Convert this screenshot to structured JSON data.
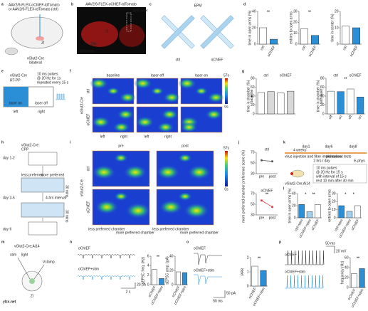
{
  "panels": {
    "a": {
      "letter": "a",
      "virus1": "AAV2/9-FLEX-oChIEF-tdTomato",
      "virus2": "or AAV2/9-FLEX-tdTomato (ctrl)",
      "region": "ZI",
      "mouse": "vGlut2-Cre",
      "note": "bilateral"
    },
    "b": {
      "letter": "b",
      "title": "AAV2/9-FLEX-oChIEF-tdTomato",
      "fiber": "optic fiber",
      "zi": "ZI",
      "dn": "DN",
      "marker": "tdTomato"
    },
    "c": {
      "letter": "c",
      "title": "EPM",
      "ctrl": "ctrl",
      "ochief": "oChIEF"
    },
    "d": {
      "letter": "d",
      "plots": [
        {
          "ylabel": "time in open arms (%)",
          "ylim": [
            0,
            40
          ],
          "yticks": [
            0,
            20,
            40
          ],
          "categories": [
            "ctrl",
            "oChIEF"
          ],
          "colors": [
            "#ffffff",
            "#2b8fd8"
          ],
          "values": [
            20,
            6
          ],
          "sig": [
            "**"
          ]
        },
        {
          "ylabel": "entries to open arms",
          "ylim": [
            0,
            30
          ],
          "yticks": [
            0,
            10,
            20,
            30
          ],
          "categories": [
            "ctrl",
            "oChIEF"
          ],
          "colors": [
            "#ffffff",
            "#2b8fd8"
          ],
          "values": [
            14,
            8
          ],
          "sig": [
            "**"
          ]
        },
        {
          "ylabel": "time in center (%)",
          "ylim": [
            0,
            20
          ],
          "yticks": [
            0,
            10,
            20
          ],
          "categories": [
            "ctrl",
            "oChIEF"
          ],
          "colors": [
            "#ffffff",
            "#2b8fd8"
          ],
          "values": [
            11,
            10
          ]
        }
      ]
    },
    "e": {
      "letter": "e",
      "mouse": "vGlut2-Cre",
      "task": "RT-PP",
      "on": "laser on",
      "off": "laser off",
      "left": "left",
      "right": "right",
      "pulse1": "10 ms pulses",
      "pulse2": "@ 20 Hz for 1s",
      "pulse3": "repeated every 15 s"
    },
    "f": {
      "letter": "f",
      "cols": [
        "baseline",
        "laser-off",
        "laser-on"
      ],
      "rows": [
        "ctrl",
        "oChIEF"
      ],
      "mouse": "vGlut2-Cre",
      "sides": [
        "left",
        "right",
        "left",
        "right"
      ],
      "cmax": "57s",
      "cmin": "0s"
    },
    "g": {
      "letter": "g",
      "plots": [
        {
          "ylabel": "time in chamber (%)",
          "sub": "baseline",
          "groups": [
            "ctrl",
            "oChIEF"
          ],
          "ylim": [
            0,
            80
          ],
          "yticks": [
            0,
            20,
            40,
            60,
            80
          ],
          "colors": [
            "#ffffff",
            "#d9d9d9",
            "#ffffff",
            "#d9d9d9"
          ],
          "values": [
            48,
            50,
            47,
            51
          ]
        },
        {
          "ylabel": "time in chamber (%)",
          "sub": "with laser",
          "groups": [
            "ctrl",
            "oChIEF"
          ],
          "ylim": [
            0,
            80
          ],
          "yticks": [
            0,
            20,
            40,
            60,
            80
          ],
          "categories": [
            "off",
            "on",
            "off",
            "on"
          ],
          "colors": [
            "#ffffff",
            "#2b8fd8",
            "#ffffff",
            "#2b8fd8"
          ],
          "values": [
            51,
            50,
            56,
            38
          ],
          "sig": [
            "**"
          ]
        }
      ]
    },
    "h": {
      "letter": "h",
      "mouse": "vGlut2-Cre",
      "task": "CPP",
      "days": [
        "day 1-2",
        "day 3-5",
        "day 6"
      ],
      "less": "less preferred",
      "more": "more preferred",
      "interval": "4-hrs interval",
      "dur1": "30 mins",
      "dur2": "30 mins"
    },
    "i": {
      "letter": "i",
      "cols": [
        "pre",
        "post"
      ],
      "rows": [
        "ctrl",
        "oChIEF"
      ],
      "mouse": "vGlut2-Cre",
      "sides": [
        "less preferred chamber",
        "more preferred chamber",
        "less preferred chamber",
        "more preferred chamber"
      ],
      "cmax": "57s",
      "cmin": "0s"
    },
    "j": {
      "letter": "j",
      "ylabel": "more preferred chamber preference score (%)",
      "plots": [
        {
          "type": "line",
          "title": "ctrl",
          "categories": [
            "pre",
            "post"
          ],
          "ylim": [
            30,
            70
          ],
          "yticks": [
            30,
            50,
            70
          ],
          "values": [
            55,
            53
          ],
          "color": "#555555"
        },
        {
          "type": "line",
          "title": "oChIEF",
          "categories": [
            "pre",
            "post"
          ],
          "ylim": [
            30,
            70
          ],
          "yticks": [
            30,
            50,
            70
          ],
          "values": [
            57,
            45
          ],
          "color": "#e04040",
          "sig": [
            "**"
          ]
        }
      ]
    },
    "k": {
      "letter": "k",
      "weeks": "4 weeks",
      "days": [
        "day1",
        "day6",
        "day8"
      ],
      "step1": "virus injection and fiber implantation",
      "step2": "2 hrs / day",
      "step3": "behavioral tests",
      "step4": "E-phys",
      "protocol": [
        "10 ms pulses",
        "@ 20 Hz for 15 s",
        "with interval of 15 s",
        "rest 10 min after 30 min"
      ],
      "mouse": "vGlut2-Cre;Ai14"
    },
    "l": {
      "letter": "l",
      "plots": [
        {
          "ylabel": "time in open arms (%)",
          "ylim": [
            0,
            40
          ],
          "yticks": [
            0,
            20,
            40
          ],
          "categories": [
            "ctrl+stim",
            "oChIEF+stim",
            "oChIEF"
          ],
          "colors": [
            "#2b8fd8",
            "#9fd0f0",
            "#ffffff"
          ],
          "values": [
            22,
            10,
            22
          ],
          "sig": [
            "*",
            "**"
          ]
        },
        {
          "ylabel": "entries to open arms",
          "ylim": [
            0,
            30
          ],
          "yticks": [
            0,
            10,
            20,
            30
          ],
          "categories": [
            "ctrl+stim",
            "oChIEF+stim",
            "oChIEF"
          ],
          "colors": [
            "#2b8fd8",
            "#9fd0f0",
            "#ffffff"
          ],
          "values": [
            15,
            8,
            15
          ],
          "sig": [
            "*",
            "*"
          ]
        }
      ]
    },
    "m": {
      "letter": "m",
      "mouse": "vGlut2-Cre;Ai14",
      "stim": "stim",
      "light": "light",
      "clamp": "Vclamp",
      "region": "ZI"
    },
    "n": {
      "letter": "n",
      "ochief": "oChIEF",
      "stim": "oChIEF+stim",
      "time": "2 s",
      "amp": "20 pA",
      "plots": [
        {
          "ylabel": "sEPSC freq. (Hz)",
          "ylim": [
            0,
            6
          ],
          "yticks": [
            0,
            2,
            4,
            6
          ],
          "categories": [
            "oChIEF",
            "oChIEF+stim"
          ],
          "colors": [
            "#ffffff",
            "#2b8fd8"
          ],
          "values": [
            3.2,
            1.3
          ],
          "sig": [
            "**"
          ]
        },
        {
          "ylabel": "sEPSC amp. (pA)",
          "ylim": [
            0,
            40
          ],
          "yticks": [
            0,
            20,
            40
          ],
          "categories": [
            "oChIEF",
            "oChIEF+stim"
          ],
          "colors": [
            "#ffffff",
            "#2b8fd8"
          ],
          "values": [
            18,
            17
          ]
        }
      ]
    },
    "o": {
      "letter": "o",
      "ochief": "oChIEF",
      "stim": "oChIEF+stim",
      "time": "50 ms",
      "amp": "50 pA",
      "plots": [
        {
          "ylabel": "PPR",
          "ylim": [
            0,
            2
          ],
          "yticks": [
            0,
            1,
            2
          ],
          "categories": [
            "oChIEF",
            "oChIEF+stim"
          ],
          "colors": [
            "#ffffff",
            "#2b8fd8"
          ],
          "values": [
            1.4,
            1.1
          ],
          "sig": [
            "**"
          ]
        }
      ]
    },
    "p": {
      "letter": "p",
      "ochief": "oChIEF",
      "stim": "oChIEF+stim",
      "time": "50 ms",
      "amp": "20 mV",
      "plots": [
        {
          "ylabel": "frequency (Hz)",
          "ylim": [
            0,
            60
          ],
          "yticks": [
            0,
            20,
            40,
            60
          ],
          "categories": [
            "oChIEF",
            "oChIEF+stim"
          ],
          "colors": [
            "#ffffff",
            "#2b8fd8"
          ],
          "values": [
            28,
            38
          ],
          "sig": [
            "**"
          ]
        }
      ]
    }
  },
  "watermark": "ylzx.net"
}
